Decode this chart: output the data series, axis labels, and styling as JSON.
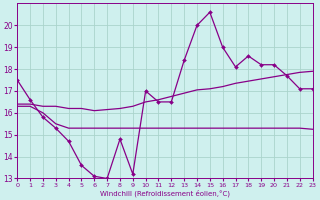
{
  "xlabel": "Windchill (Refroidissement éolien,°C)",
  "bg_color": "#cff0ee",
  "grid_color": "#aad4cc",
  "line_color": "#880088",
  "x": [
    0,
    1,
    2,
    3,
    4,
    5,
    6,
    7,
    8,
    9,
    10,
    11,
    12,
    13,
    14,
    15,
    16,
    17,
    18,
    19,
    20,
    21,
    22,
    23
  ],
  "y_main": [
    17.5,
    16.6,
    15.8,
    15.3,
    14.7,
    13.6,
    13.1,
    13.0,
    14.8,
    13.2,
    17.0,
    16.5,
    16.5,
    18.4,
    20.0,
    20.6,
    19.0,
    18.1,
    18.6,
    18.2,
    18.2,
    17.7,
    17.1,
    17.1
  ],
  "y_trend_up": [
    16.4,
    16.4,
    16.3,
    16.3,
    16.2,
    16.2,
    16.1,
    16.15,
    16.2,
    16.3,
    16.5,
    16.6,
    16.75,
    16.9,
    17.05,
    17.1,
    17.2,
    17.35,
    17.45,
    17.55,
    17.65,
    17.75,
    17.85,
    17.9
  ],
  "y_flat": [
    16.3,
    16.3,
    16.0,
    15.5,
    15.3,
    15.3,
    15.3,
    15.3,
    15.3,
    15.3,
    15.3,
    15.3,
    15.3,
    15.3,
    15.3,
    15.3,
    15.3,
    15.3,
    15.3,
    15.3,
    15.3,
    15.3,
    15.3,
    15.25
  ],
  "ylim": [
    13,
    21
  ],
  "xlim": [
    0,
    23
  ],
  "yticks": [
    13,
    14,
    15,
    16,
    17,
    18,
    19,
    20
  ],
  "xticks": [
    0,
    1,
    2,
    3,
    4,
    5,
    6,
    7,
    8,
    9,
    10,
    11,
    12,
    13,
    14,
    15,
    16,
    17,
    18,
    19,
    20,
    21,
    22,
    23
  ]
}
